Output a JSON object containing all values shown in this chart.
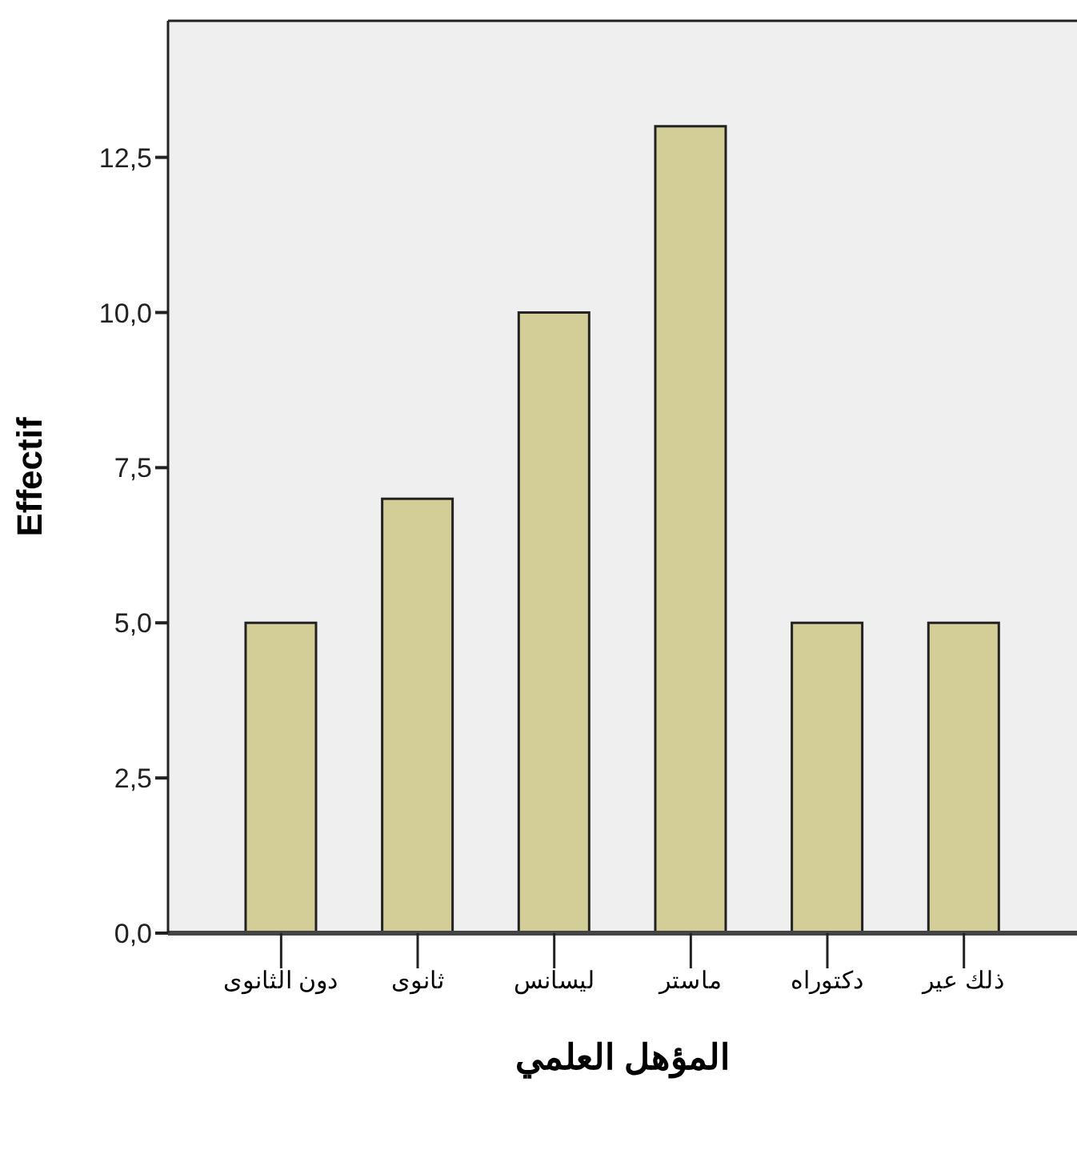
{
  "chart_data": {
    "type": "bar",
    "xlabel": "المؤهل العلمي",
    "ylabel": "Effectif",
    "categories": [
      "دون الثانوى",
      "ثانوى",
      "ليسانس",
      "ماستر",
      "دكتوراه",
      "ذلك عير"
    ],
    "values": [
      5,
      7,
      10,
      13,
      5,
      5
    ],
    "color": "#d3cd98",
    "ylim": [
      0,
      14.7
    ],
    "yticks": [
      {
        "value": 0,
        "label": "0,0"
      },
      {
        "value": 2.5,
        "label": "2,5"
      },
      {
        "value": 5,
        "label": "5,0"
      },
      {
        "value": 7.5,
        "label": "7,5"
      },
      {
        "value": 10,
        "label": "10,0"
      },
      {
        "value": 12.5,
        "label": "12,5"
      }
    ]
  }
}
